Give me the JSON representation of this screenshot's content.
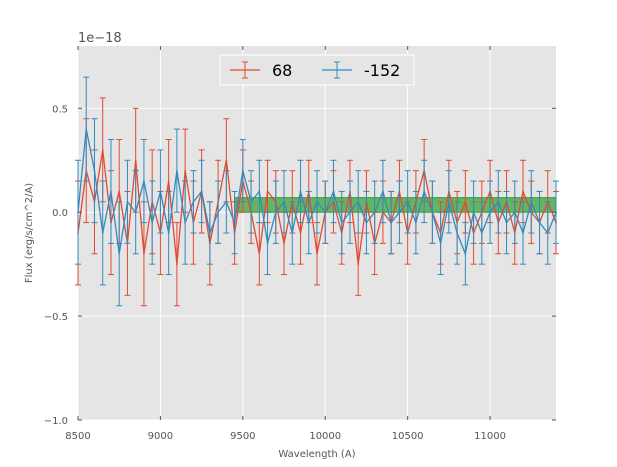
{
  "chart_data": {
    "type": "line",
    "title": "",
    "xlabel": "Wavelength (A)",
    "ylabel": "Flux (erg/s/cm^2/A)",
    "y_offset_label": "1e−18",
    "xlim": [
      8500,
      11400
    ],
    "ylim": [
      -1.0,
      0.8
    ],
    "xticks": [
      8500,
      9000,
      9500,
      10000,
      10500,
      11000
    ],
    "xtick_labels": [
      "8500",
      "9000",
      "9500",
      "10000",
      "10500",
      "11000"
    ],
    "yticks": [
      -1.0,
      -0.5,
      0.0,
      0.5
    ],
    "ytick_labels": [
      "−1.0",
      "−0.5",
      "0.0",
      "0.5"
    ],
    "grid": true,
    "legend_placement": "top-center",
    "band": {
      "x_start": 9450,
      "x_end": 11400,
      "y_low": 0.0,
      "y_high": 0.07,
      "color": "#2ca02c"
    },
    "series": [
      {
        "name": "68",
        "color": "#e24a33",
        "x": [
          8500,
          8550,
          8600,
          8650,
          8700,
          8750,
          8800,
          8850,
          8900,
          8950,
          9000,
          9050,
          9100,
          9150,
          9200,
          9250,
          9300,
          9350,
          9400,
          9450,
          9500,
          9550,
          9600,
          9650,
          9700,
          9750,
          9800,
          9850,
          9900,
          9950,
          10000,
          10050,
          10100,
          10150,
          10200,
          10250,
          10300,
          10350,
          10400,
          10450,
          10500,
          10550,
          10600,
          10650,
          10700,
          10750,
          10800,
          10850,
          10900,
          10950,
          11000,
          11050,
          11100,
          11150,
          11200,
          11250,
          11300,
          11350,
          11400
        ],
        "y": [
          -0.1,
          0.2,
          0.05,
          0.3,
          -0.05,
          0.1,
          -0.15,
          0.25,
          -0.2,
          0.05,
          -0.1,
          0.15,
          -0.25,
          0.2,
          -0.05,
          0.1,
          -0.15,
          0.05,
          0.25,
          -0.1,
          0.15,
          0.0,
          -0.2,
          0.1,
          0.05,
          -0.15,
          0.05,
          -0.1,
          0.1,
          -0.2,
          0.0,
          0.05,
          -0.1,
          0.1,
          -0.25,
          0.05,
          -0.15,
          0.0,
          -0.05,
          0.1,
          -0.1,
          0.05,
          0.2,
          0.0,
          -0.1,
          0.1,
          -0.05,
          0.05,
          -0.1,
          0.0,
          0.1,
          -0.05,
          0.05,
          -0.1,
          0.1,
          0.0,
          -0.05,
          0.05,
          -0.05
        ],
        "err": [
          0.25,
          0.25,
          0.25,
          0.25,
          0.25,
          0.25,
          0.25,
          0.25,
          0.25,
          0.25,
          0.2,
          0.2,
          0.2,
          0.2,
          0.2,
          0.2,
          0.2,
          0.2,
          0.2,
          0.15,
          0.15,
          0.15,
          0.15,
          0.15,
          0.15,
          0.15,
          0.15,
          0.15,
          0.15,
          0.15,
          0.15,
          0.15,
          0.15,
          0.15,
          0.15,
          0.15,
          0.15,
          0.15,
          0.15,
          0.15,
          0.15,
          0.15,
          0.15,
          0.15,
          0.15,
          0.15,
          0.15,
          0.15,
          0.15,
          0.15,
          0.15,
          0.15,
          0.15,
          0.15,
          0.15,
          0.15,
          0.15,
          0.15,
          0.15
        ]
      },
      {
        "name": "-152",
        "color": "#348abd",
        "x": [
          8500,
          8550,
          8600,
          8650,
          8700,
          8750,
          8800,
          8850,
          8900,
          8950,
          9000,
          9050,
          9100,
          9150,
          9200,
          9250,
          9300,
          9350,
          9400,
          9450,
          9500,
          9550,
          9600,
          9650,
          9700,
          9750,
          9800,
          9850,
          9900,
          9950,
          10000,
          10050,
          10100,
          10150,
          10200,
          10250,
          10300,
          10350,
          10400,
          10450,
          10500,
          10550,
          10600,
          10650,
          10700,
          10750,
          10800,
          10850,
          10900,
          10950,
          11000,
          11050,
          11100,
          11150,
          11200,
          11250,
          11300,
          11350,
          11400
        ],
        "y": [
          0.0,
          0.4,
          0.2,
          -0.1,
          0.1,
          -0.2,
          0.05,
          0.0,
          0.15,
          -0.05,
          0.1,
          -0.1,
          0.2,
          -0.05,
          0.05,
          0.1,
          -0.1,
          0.0,
          0.05,
          -0.05,
          0.2,
          0.05,
          0.1,
          -0.15,
          0.0,
          0.05,
          -0.1,
          0.1,
          -0.05,
          0.05,
          0.0,
          0.1,
          -0.05,
          0.0,
          0.05,
          -0.05,
          0.0,
          0.1,
          -0.05,
          0.0,
          0.05,
          -0.05,
          0.1,
          0.0,
          -0.15,
          0.05,
          -0.1,
          -0.2,
          0.0,
          -0.1,
          0.0,
          0.05,
          -0.05,
          0.0,
          -0.1,
          0.05,
          -0.05,
          -0.1,
          0.0
        ],
        "err": [
          0.25,
          0.25,
          0.25,
          0.25,
          0.25,
          0.25,
          0.2,
          0.2,
          0.2,
          0.2,
          0.2,
          0.2,
          0.2,
          0.2,
          0.15,
          0.15,
          0.15,
          0.15,
          0.15,
          0.15,
          0.15,
          0.15,
          0.15,
          0.15,
          0.15,
          0.15,
          0.15,
          0.15,
          0.15,
          0.15,
          0.15,
          0.15,
          0.15,
          0.15,
          0.15,
          0.15,
          0.15,
          0.15,
          0.15,
          0.15,
          0.15,
          0.15,
          0.15,
          0.15,
          0.15,
          0.15,
          0.15,
          0.15,
          0.15,
          0.15,
          0.15,
          0.15,
          0.15,
          0.15,
          0.15,
          0.15,
          0.15,
          0.15,
          0.15
        ]
      }
    ]
  }
}
